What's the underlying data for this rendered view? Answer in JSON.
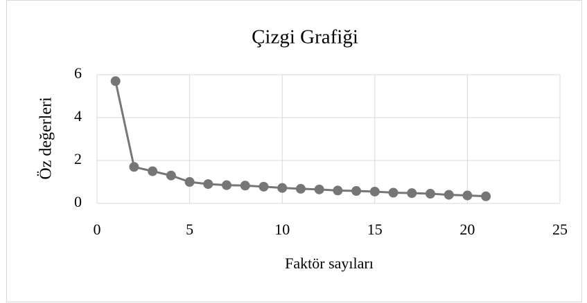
{
  "chart_data": {
    "type": "line",
    "title": "Çizgi Grafiği",
    "x_label": "Faktör sayıları",
    "y_label": "Öz değerleri",
    "x": [
      1,
      2,
      3,
      4,
      5,
      6,
      7,
      8,
      9,
      10,
      11,
      12,
      13,
      14,
      15,
      16,
      17,
      18,
      19,
      20,
      21
    ],
    "series": [
      {
        "name": "Öz değerleri",
        "color": "#767676",
        "values": [
          5.7,
          1.7,
          1.5,
          1.3,
          1.0,
          0.9,
          0.85,
          0.83,
          0.78,
          0.72,
          0.68,
          0.65,
          0.6,
          0.58,
          0.55,
          0.5,
          0.48,
          0.45,
          0.4,
          0.37,
          0.33
        ]
      }
    ],
    "xlim": [
      0,
      25
    ],
    "xticks": [
      0,
      5,
      10,
      15,
      20,
      25
    ],
    "ylim": [
      0,
      6
    ],
    "yticks": [
      0,
      2,
      4,
      6
    ],
    "grid": true
  }
}
